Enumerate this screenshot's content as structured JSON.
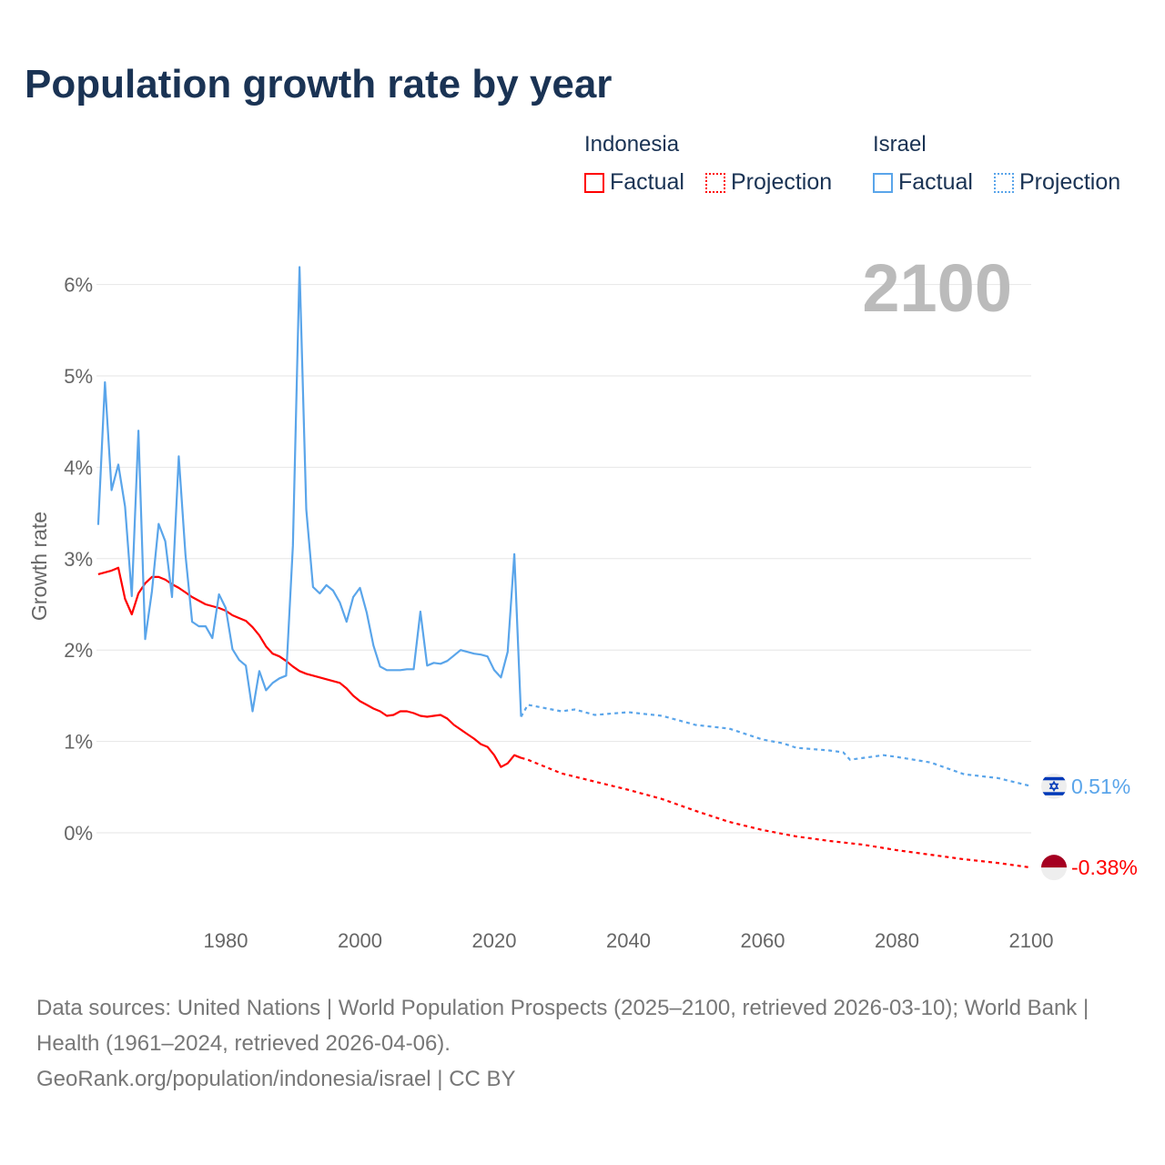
{
  "chart_data": {
    "type": "line",
    "title": "Population growth rate by year",
    "xlabel": "",
    "ylabel": "Growth rate",
    "xlim": [
      1961,
      2100
    ],
    "ylim": [
      -0.95,
      6.3
    ],
    "xticks": [
      1980,
      2000,
      2020,
      2040,
      2060,
      2080,
      2100
    ],
    "xtick_labels": [
      "1980",
      "2000",
      "2020",
      "2040",
      "2060",
      "2080",
      "2100"
    ],
    "yticks": [
      0,
      1,
      2,
      3,
      4,
      5,
      6
    ],
    "ytick_labels": [
      "0%",
      "1%",
      "2%",
      "3%",
      "4%",
      "5%",
      "6%"
    ],
    "grid": true,
    "year_label": "2100",
    "legend": {
      "placement": "top-right",
      "groups": [
        {
          "name": "Indonesia",
          "factual": "Factual",
          "projection": "Projection",
          "color": "#ff0000"
        },
        {
          "name": "Israel",
          "factual": "Factual",
          "projection": "Projection",
          "color": "#5aa5ea"
        }
      ]
    },
    "series": [
      {
        "name": "Indonesia",
        "color": "#ff0000",
        "end_label": "-0.38%",
        "flag_colors": [
          "#a50021",
          "#eeeeee"
        ],
        "factual": {
          "x": [
            1961,
            1962,
            1963,
            1964,
            1965,
            1966,
            1967,
            1968,
            1969,
            1970,
            1971,
            1972,
            1973,
            1974,
            1975,
            1976,
            1977,
            1978,
            1979,
            1980,
            1981,
            1982,
            1983,
            1984,
            1985,
            1986,
            1987,
            1988,
            1989,
            1990,
            1991,
            1992,
            1993,
            1994,
            1995,
            1996,
            1997,
            1998,
            1999,
            2000,
            2001,
            2002,
            2003,
            2004,
            2005,
            2006,
            2007,
            2008,
            2009,
            2010,
            2011,
            2012,
            2013,
            2014,
            2015,
            2016,
            2017,
            2018,
            2019,
            2020,
            2021,
            2022,
            2023,
            2024
          ],
          "y": [
            2.83,
            2.85,
            2.87,
            2.9,
            2.56,
            2.39,
            2.62,
            2.73,
            2.8,
            2.8,
            2.77,
            2.72,
            2.68,
            2.63,
            2.58,
            2.54,
            2.5,
            2.48,
            2.46,
            2.43,
            2.38,
            2.35,
            2.32,
            2.25,
            2.16,
            2.04,
            1.96,
            1.93,
            1.88,
            1.82,
            1.77,
            1.74,
            1.72,
            1.7,
            1.68,
            1.66,
            1.64,
            1.58,
            1.5,
            1.44,
            1.4,
            1.36,
            1.33,
            1.28,
            1.29,
            1.33,
            1.33,
            1.31,
            1.28,
            1.27,
            1.28,
            1.29,
            1.25,
            1.18,
            1.13,
            1.08,
            1.03,
            0.97,
            0.94,
            0.85,
            0.72,
            0.76,
            0.85,
            0.82
          ]
        },
        "projection": {
          "x": [
            2024,
            2025,
            2030,
            2035,
            2040,
            2045,
            2050,
            2055,
            2060,
            2065,
            2070,
            2075,
            2080,
            2085,
            2090,
            2095,
            2100
          ],
          "y": [
            0.82,
            0.8,
            0.65,
            0.56,
            0.47,
            0.37,
            0.24,
            0.12,
            0.03,
            -0.04,
            -0.09,
            -0.13,
            -0.19,
            -0.24,
            -0.29,
            -0.33,
            -0.38
          ]
        }
      },
      {
        "name": "Israel",
        "color": "#5aa5ea",
        "end_label": "0.51%",
        "flag_colors": [
          "#0038b8",
          "#eeeeee"
        ],
        "factual": {
          "x": [
            1961,
            1962,
            1963,
            1964,
            1965,
            1966,
            1967,
            1968,
            1969,
            1970,
            1971,
            1972,
            1973,
            1974,
            1975,
            1976,
            1977,
            1978,
            1979,
            1980,
            1981,
            1982,
            1983,
            1984,
            1985,
            1986,
            1987,
            1988,
            1989,
            1990,
            1991,
            1992,
            1993,
            1994,
            1995,
            1996,
            1997,
            1998,
            1999,
            2000,
            2001,
            2002,
            2003,
            2004,
            2005,
            2006,
            2007,
            2008,
            2009,
            2010,
            2011,
            2012,
            2013,
            2014,
            2015,
            2016,
            2017,
            2018,
            2019,
            2020,
            2021,
            2022,
            2023,
            2024
          ],
          "y": [
            3.37,
            4.93,
            3.75,
            4.03,
            3.57,
            2.59,
            4.4,
            2.12,
            2.64,
            3.38,
            3.19,
            2.58,
            4.12,
            3.04,
            2.31,
            2.26,
            2.26,
            2.13,
            2.61,
            2.46,
            2.01,
            1.89,
            1.83,
            1.33,
            1.77,
            1.56,
            1.64,
            1.69,
            1.72,
            3.14,
            6.19,
            3.54,
            2.69,
            2.62,
            2.71,
            2.65,
            2.52,
            2.31,
            2.58,
            2.68,
            2.41,
            2.05,
            1.82,
            1.78,
            1.78,
            1.78,
            1.79,
            1.79,
            2.42,
            1.83,
            1.86,
            1.85,
            1.88,
            1.94,
            2.0,
            1.98,
            1.96,
            1.95,
            1.93,
            1.78,
            1.7,
            1.98,
            3.05,
            1.27
          ]
        },
        "projection": {
          "x": [
            2024,
            2025,
            2030,
            2032,
            2035,
            2040,
            2045,
            2050,
            2055,
            2060,
            2063,
            2065,
            2070,
            2072,
            2073,
            2078,
            2080,
            2085,
            2090,
            2095,
            2100
          ],
          "y": [
            1.27,
            1.4,
            1.33,
            1.35,
            1.29,
            1.32,
            1.28,
            1.18,
            1.14,
            1.02,
            0.98,
            0.93,
            0.9,
            0.88,
            0.8,
            0.85,
            0.83,
            0.77,
            0.64,
            0.6,
            0.51
          ]
        }
      }
    ]
  },
  "footer": {
    "source_line": "Data sources: United Nations | World Population Prospects (2025–2100, retrieved 2026-03-10); World Bank | Health (1961–2024, retrieved 2026-04-06).",
    "attribution": "GeoRank.org/population/indonesia/israel | CC BY"
  }
}
